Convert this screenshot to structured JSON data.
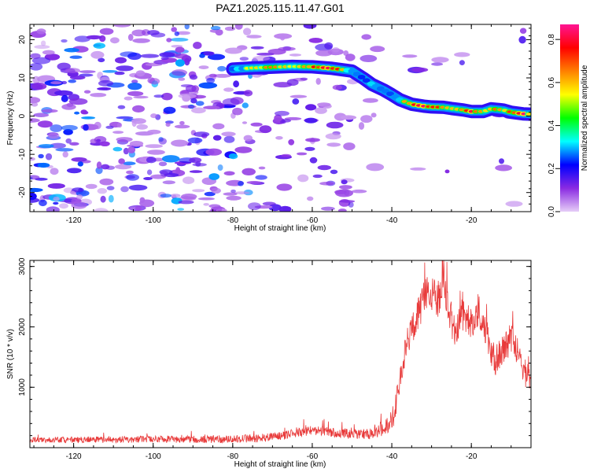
{
  "title": "PAZ1.2025.115.11.47.G01",
  "chart_data": [
    {
      "type": "heatmap",
      "xlabel": "Height of straight line (km)",
      "ylabel": "Frequency (Hz)",
      "xlim": [
        -131,
        -5
      ],
      "ylim": [
        -25,
        24
      ],
      "x_ticks": [
        -120,
        -100,
        -80,
        -60,
        -40,
        -20
      ],
      "y_ticks": [
        -20,
        -10,
        0,
        10,
        20
      ],
      "colorbar": {
        "label": "Normalized spectral amplitude",
        "range": [
          0,
          0.87
        ],
        "ticks": [
          0.0,
          0.2,
          0.4,
          0.6,
          0.8
        ],
        "colormap": [
          "#e6cdf7",
          "#8a2be2",
          "#0000ff",
          "#00ffff",
          "#00ff00",
          "#ffff00",
          "#ff8000",
          "#ff0000",
          "#ff1493"
        ]
      },
      "ridge": {
        "x": [
          -80,
          -75,
          -70,
          -65,
          -60,
          -55,
          -50,
          -47,
          -45,
          -42,
          -40,
          -38,
          -35,
          -32,
          -30,
          -27,
          -25,
          -22,
          -20,
          -17,
          -15,
          -12,
          -10,
          -7,
          -5
        ],
        "y": [
          12.3,
          12.6,
          12.8,
          13.0,
          12.9,
          12.5,
          11.8,
          9.8,
          8.3,
          6.8,
          5.6,
          4.3,
          3.1,
          2.6,
          2.4,
          2.3,
          2.0,
          1.6,
          1.2,
          1.2,
          1.9,
          1.6,
          1.0,
          0.6,
          0.5
        ],
        "amplitude": [
          0.45,
          0.55,
          0.65,
          0.6,
          0.75,
          0.8,
          0.5,
          0.35,
          0.5,
          0.45,
          0.4,
          0.5,
          0.75,
          0.85,
          0.8,
          0.65,
          0.6,
          0.7,
          0.85,
          0.6,
          0.7,
          0.6,
          0.75,
          0.85,
          0.6
        ]
      },
      "background_amplitude": "low noise (about 0.05-0.25) for heights below about -45 km, fading above -50 km"
    },
    {
      "type": "line",
      "xlabel": "Height of straight line (km)",
      "ylabel": "SNR (10 * v/v)",
      "xlim": [
        -131,
        -5
      ],
      "ylim": [
        0,
        3100
      ],
      "x_ticks": [
        -120,
        -100,
        -80,
        -60,
        -40,
        -20
      ],
      "y_ticks": [
        1000,
        2000,
        3000
      ],
      "color": "#e83a3a",
      "envelope": {
        "x": [
          -131,
          -120,
          -100,
          -80,
          -70,
          -65,
          -60,
          -55,
          -50,
          -45,
          -42,
          -40,
          -39,
          -38,
          -36,
          -34,
          -32,
          -30,
          -28,
          -27,
          -26,
          -24,
          -22,
          -20,
          -18,
          -16,
          -14,
          -12,
          -10,
          -8,
          -6,
          -5
        ],
        "y": [
          130,
          130,
          140,
          140,
          170,
          230,
          290,
          260,
          220,
          230,
          330,
          420,
          700,
          1150,
          1800,
          2100,
          2450,
          2600,
          2450,
          2950,
          2300,
          1950,
          2200,
          2050,
          2250,
          1850,
          1400,
          1650,
          1800,
          1550,
          1150,
          1200
        ]
      },
      "noise_amplitude": {
        "x": [
          -131,
          -60,
          -45,
          -38,
          -30,
          -20,
          -10,
          -5
        ],
        "y": [
          45,
          75,
          90,
          220,
          330,
          260,
          260,
          220
        ]
      }
    }
  ]
}
